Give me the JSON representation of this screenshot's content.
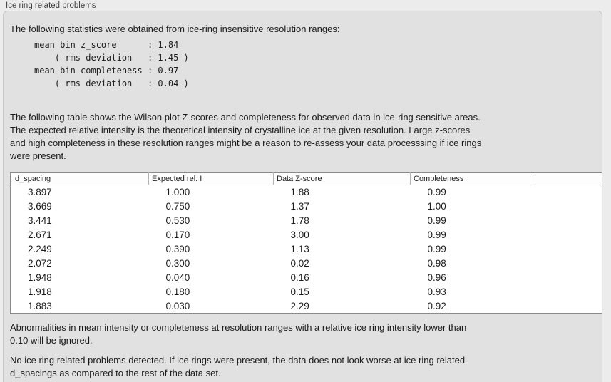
{
  "window": {
    "group_label": "Ice ring related problems"
  },
  "stats": {
    "intro": "The following statistics were obtained from ice-ring insensitive resolution ranges:",
    "block": "mean bin z_score      : 1.84\n    ( rms deviation   : 1.45 )\nmean bin completeness : 0.97\n    ( rms deviation   : 0.04 )",
    "mean_bin_z_score": "1.84",
    "z_score_rms_deviation": "1.45",
    "mean_bin_completeness": "0.97",
    "completeness_rms_deviation": "0.04"
  },
  "table_description": "The following table shows the Wilson plot Z-scores and completeness for observed data in ice-ring sensitive areas.\nThe expected relative intensity is the theoretical intensity of crystalline ice at the given resolution. Large z-scores\nand high completeness in these resolution ranges might be a reason to re-assess your data processsing if ice rings\nwere present.",
  "table": {
    "columns": [
      "d_spacing",
      "Expected rel. I",
      "Data Z-score",
      "Completeness"
    ],
    "rows": [
      [
        "3.897",
        "1.000",
        "1.88",
        "0.99"
      ],
      [
        "3.669",
        "0.750",
        "1.37",
        "1.00"
      ],
      [
        "3.441",
        "0.530",
        "1.78",
        "0.99"
      ],
      [
        "2.671",
        "0.170",
        "3.00",
        "0.99"
      ],
      [
        "2.249",
        "0.390",
        "1.13",
        "0.99"
      ],
      [
        "2.072",
        "0.300",
        "0.02",
        "0.98"
      ],
      [
        "1.948",
        "0.040",
        "0.16",
        "0.96"
      ],
      [
        "1.918",
        "0.180",
        "0.15",
        "0.93"
      ],
      [
        "1.883",
        "0.030",
        "2.29",
        "0.92"
      ]
    ]
  },
  "notes": {
    "ignore_rule": "Abnormalities in mean intensity or completeness at resolution ranges with a relative ice ring intensity lower than\n0.10 will be ignored.",
    "conclusion": "No ice ring related problems detected. If ice rings were present, the data does not look worse at ice ring related\nd_spacings as compared to the rest of the data set."
  },
  "colors": {
    "outer_background": "#ececec",
    "panel_background": "#e1e1e1",
    "panel_border": "#c6c6c6",
    "table_background": "#ffffff",
    "table_border": "#8a8a8a",
    "text": "#1c1c1c"
  }
}
